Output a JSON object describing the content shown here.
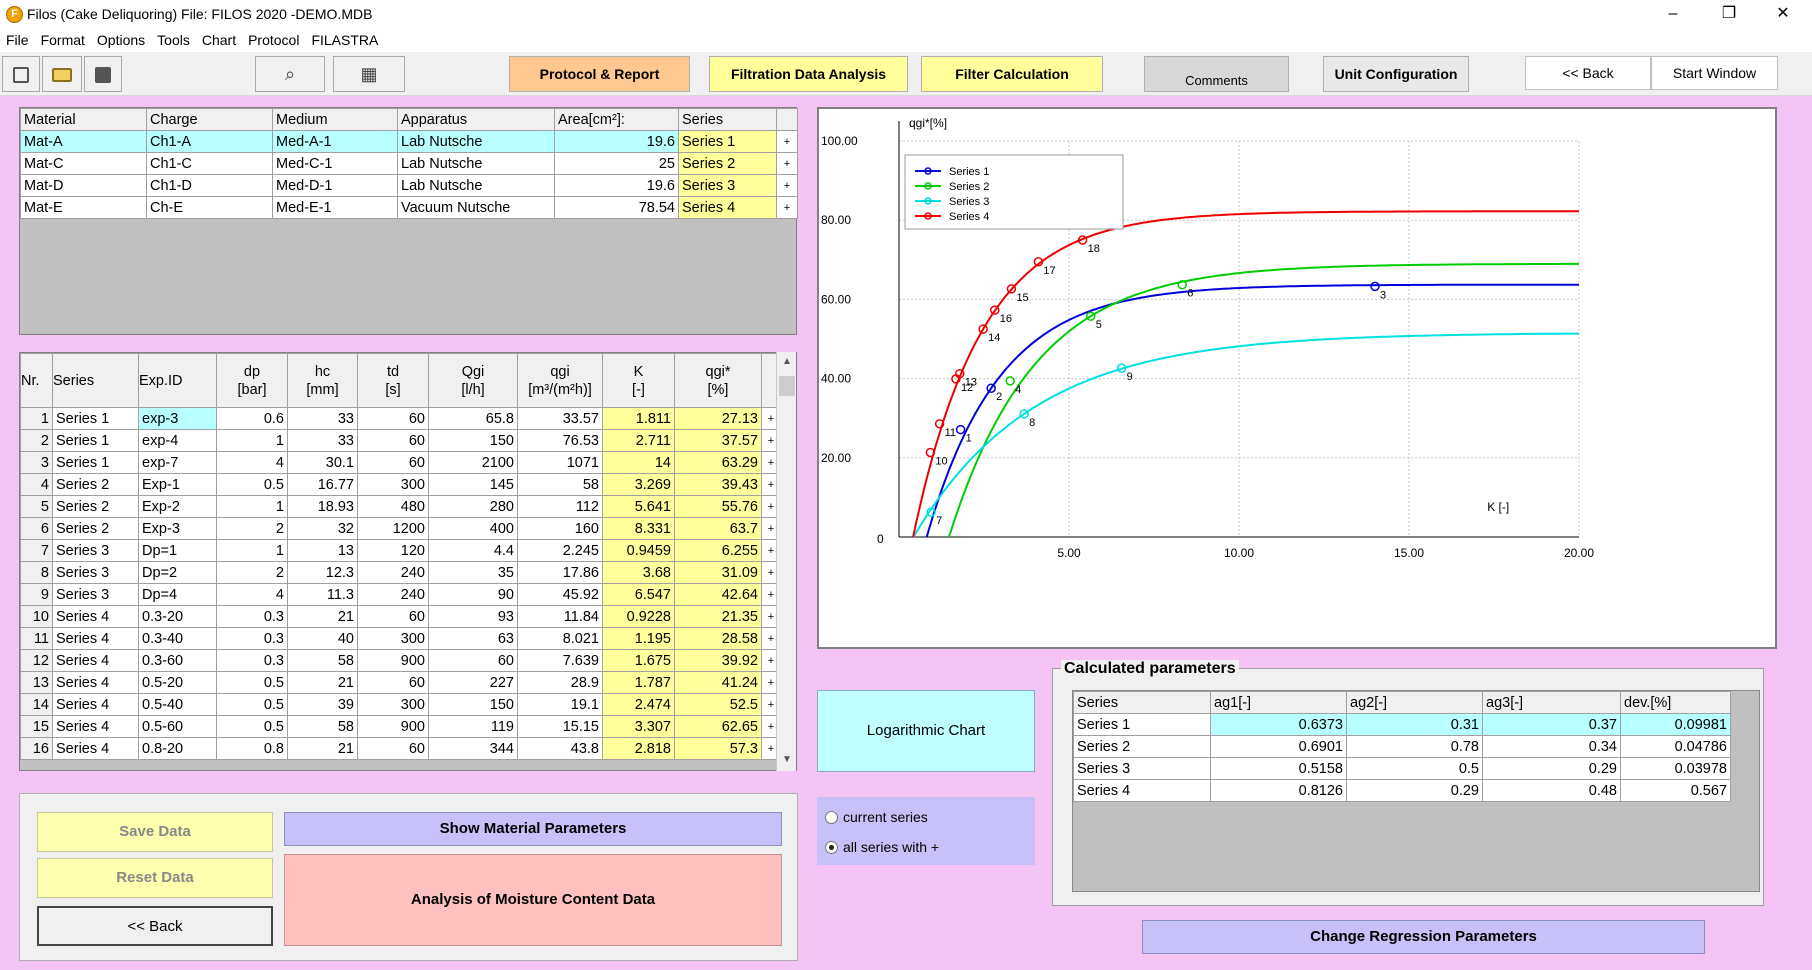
{
  "window": {
    "title": "Filos (Cake Deliquoring)   File: FILOS 2020 -DEMO.MDB",
    "app_icon_letter": "F",
    "minimize_glyph": "–",
    "maximize_glyph": "❐",
    "close_glyph": "✕"
  },
  "menu": [
    "File",
    "Format",
    "Options",
    "Tools",
    "Chart",
    "Protocol",
    "FILASTRA"
  ],
  "toolbar": {
    "icons": [
      "new-file-icon",
      "open-folder-icon",
      "save-disk-icon",
      "binoculars-icon",
      "database-table-icon"
    ],
    "binoculars_glyph": "⌕",
    "db_glyph": "▦",
    "protocol": "Protocol & Report",
    "filtration": "Filtration Data Analysis",
    "filter_calc": "Filter Calculation",
    "comments": "Comments",
    "unit_config": "Unit Configuration",
    "back": "<< Back",
    "start_window": "Start Window",
    "colors": {
      "protocol": "#ffc890",
      "filtration": "#ffff9c",
      "filter_calc": "#ffff9c",
      "comments": "#d8d8d8"
    }
  },
  "materials": {
    "headers": [
      "Material",
      "Charge",
      "Medium",
      "Apparatus",
      "Area[cm²]:",
      "Series"
    ],
    "rows": [
      [
        "Mat-A",
        "Ch1-A",
        "Med-A-1",
        "Lab Nutsche",
        "19.6",
        "Series 1",
        "+"
      ],
      [
        "Mat-C",
        "Ch1-C",
        "Med-C-1",
        "Lab  Nutsche",
        "25",
        "Series 2",
        "+"
      ],
      [
        "Mat-D",
        "Ch1-D",
        "Med-D-1",
        "Lab Nutsche",
        "19.6",
        "Series 3",
        "+"
      ],
      [
        "Mat-E",
        "Ch-E",
        "Med-E-1",
        "Vacuum  Nutsche",
        "78.54",
        "Series 4",
        "+"
      ]
    ]
  },
  "experiments": {
    "headers": [
      {
        "l1": "Nr.",
        "l2": ""
      },
      {
        "l1": "Series",
        "l2": ""
      },
      {
        "l1": "Exp.ID",
        "l2": ""
      },
      {
        "l1": "dp",
        "l2": "[bar]"
      },
      {
        "l1": "hc",
        "l2": "[mm]"
      },
      {
        "l1": "td",
        "l2": "[s]"
      },
      {
        "l1": "Qgi",
        "l2": "[l/h]"
      },
      {
        "l1": "qgi",
        "l2": "[m³/(m²h)]"
      },
      {
        "l1": "K",
        "l2": "[-]"
      },
      {
        "l1": "qgi*",
        "l2": "[%]"
      }
    ],
    "rows": [
      [
        "1",
        "Series 1",
        "exp-3",
        "0.6",
        "33",
        "60",
        "65.8",
        "33.57",
        "1.811",
        "27.13",
        "+"
      ],
      [
        "2",
        "Series 1",
        "exp-4",
        "1",
        "33",
        "60",
        "150",
        "76.53",
        "2.711",
        "37.57",
        "+"
      ],
      [
        "3",
        "Series 1",
        "exp-7",
        "4",
        "30.1",
        "60",
        "2100",
        "1071",
        "14",
        "63.29",
        "+"
      ],
      [
        "4",
        "Series 2",
        "Exp-1",
        "0.5",
        "16.77",
        "300",
        "145",
        "58",
        "3.269",
        "39.43",
        "+"
      ],
      [
        "5",
        "Series 2",
        "Exp-2",
        "1",
        "18.93",
        "480",
        "280",
        "112",
        "5.641",
        "55.76",
        "+"
      ],
      [
        "6",
        "Series 2",
        "Exp-3",
        "2",
        "32",
        "1200",
        "400",
        "160",
        "8.331",
        "63.7",
        "+"
      ],
      [
        "7",
        "Series 3",
        "Dp=1",
        "1",
        "13",
        "120",
        "4.4",
        "2.245",
        "0.9459",
        "6.255",
        "+"
      ],
      [
        "8",
        "Series 3",
        "Dp=2",
        "2",
        "12.3",
        "240",
        "35",
        "17.86",
        "3.68",
        "31.09",
        "+"
      ],
      [
        "9",
        "Series 3",
        "Dp=4",
        "4",
        "11.3",
        "240",
        "90",
        "45.92",
        "6.547",
        "42.64",
        "+"
      ],
      [
        "10",
        "Series 4",
        "0.3-20",
        "0.3",
        "21",
        "60",
        "93",
        "11.84",
        "0.9228",
        "21.35",
        "+"
      ],
      [
        "11",
        "Series 4",
        "0.3-40",
        "0.3",
        "40",
        "300",
        "63",
        "8.021",
        "1.195",
        "28.58",
        "+"
      ],
      [
        "12",
        "Series 4",
        "0.3-60",
        "0.3",
        "58",
        "900",
        "60",
        "7.639",
        "1.675",
        "39.92",
        "+"
      ],
      [
        "13",
        "Series 4",
        "0.5-20",
        "0.5",
        "21",
        "60",
        "227",
        "28.9",
        "1.787",
        "41.24",
        "+"
      ],
      [
        "14",
        "Series 4",
        "0.5-40",
        "0.5",
        "39",
        "300",
        "150",
        "19.1",
        "2.474",
        "52.5",
        "+"
      ],
      [
        "15",
        "Series 4",
        "0.5-60",
        "0.5",
        "58",
        "900",
        "119",
        "15.15",
        "3.307",
        "62.65",
        "+"
      ],
      [
        "16",
        "Series 4",
        "0.8-20",
        "0.8",
        "21",
        "60",
        "344",
        "43.8",
        "2.818",
        "57.3",
        "+"
      ]
    ]
  },
  "scrollbar": {
    "up": "▲",
    "down": "▼"
  },
  "buttons": {
    "save": "Save Data",
    "reset": "Reset Data",
    "back": "<< Back",
    "show_material": "Show Material Parameters",
    "analysis": "Analysis of Moisture Content Data",
    "log_chart": "Logarithmic Chart",
    "change_regression": "Change Regression Parameters"
  },
  "radios": {
    "current": "current series",
    "all": "all series with +",
    "selected": "all"
  },
  "calc": {
    "title": "Calculated parameters",
    "headers": [
      "Series",
      "ag1[-]",
      "ag2[-]",
      "ag3[-]",
      "dev.[%]"
    ],
    "rows": [
      [
        "Series 1",
        "0.6373",
        "0.31",
        "0.37",
        "0.09981"
      ],
      [
        "Series 2",
        "0.6901",
        "0.78",
        "0.34",
        "0.04786"
      ],
      [
        "Series 3",
        "0.5158",
        "0.5",
        "0.29",
        "0.03978"
      ],
      [
        "Series 4",
        "0.8126",
        "0.29",
        "0.48",
        "0.567"
      ]
    ]
  },
  "chart_data": {
    "type": "scatter",
    "title": "",
    "ylabel": "qgi*[%]",
    "xlabel": "K [-]",
    "xlim": [
      0,
      20
    ],
    "ylim": [
      0,
      100
    ],
    "x_ticks": [
      "5.00",
      "10.00",
      "15.00",
      "20.00"
    ],
    "y_ticks": [
      "20.00",
      "40.00",
      "60.00",
      "80.00",
      "100.00"
    ],
    "origin_label": "0",
    "grid": true,
    "legend_position": "top-left",
    "series": [
      {
        "name": "Series 1",
        "color": "#0000dd",
        "fit": {
          "a": 0.6373,
          "b": 0.31,
          "c": 0.37
        },
        "points": [
          {
            "x": 1.811,
            "y": 27.13,
            "label": "1"
          },
          {
            "x": 2.711,
            "y": 37.57,
            "label": "2"
          },
          {
            "x": 14,
            "y": 63.29,
            "label": "3"
          }
        ]
      },
      {
        "name": "Series 2",
        "color": "#00cc00",
        "fit": {
          "a": 0.6901,
          "b": 0.78,
          "c": 0.34
        },
        "points": [
          {
            "x": 3.269,
            "y": 39.43,
            "label": "4"
          },
          {
            "x": 5.641,
            "y": 55.76,
            "label": "5"
          },
          {
            "x": 8.331,
            "y": 63.7,
            "label": "6"
          }
        ]
      },
      {
        "name": "Series 3",
        "color": "#00e0e0",
        "fit": {
          "a": 0.5158,
          "b": 0.5,
          "c": 0.29
        },
        "points": [
          {
            "x": 0.9459,
            "y": 6.255,
            "label": "7"
          },
          {
            "x": 3.68,
            "y": 31.09,
            "label": "8"
          },
          {
            "x": 6.547,
            "y": 42.64,
            "label": "9"
          }
        ]
      },
      {
        "name": "Series 4",
        "color": "#ee0000",
        "fit": {
          "a": 0.8126,
          "b": 0.29,
          "c": 0.48
        },
        "points": [
          {
            "x": 0.9228,
            "y": 21.35,
            "label": "10"
          },
          {
            "x": 1.195,
            "y": 28.58,
            "label": "11"
          },
          {
            "x": 1.675,
            "y": 39.92,
            "label": "12"
          },
          {
            "x": 1.787,
            "y": 41.24,
            "label": "13"
          },
          {
            "x": 2.474,
            "y": 52.5,
            "label": "14"
          },
          {
            "x": 3.307,
            "y": 62.65,
            "label": "15"
          },
          {
            "x": 2.818,
            "y": 57.3,
            "label": "16"
          },
          {
            "x": 4.1,
            "y": 69.5,
            "label": "17"
          },
          {
            "x": 5.4,
            "y": 75.0,
            "label": "18"
          }
        ]
      }
    ]
  }
}
